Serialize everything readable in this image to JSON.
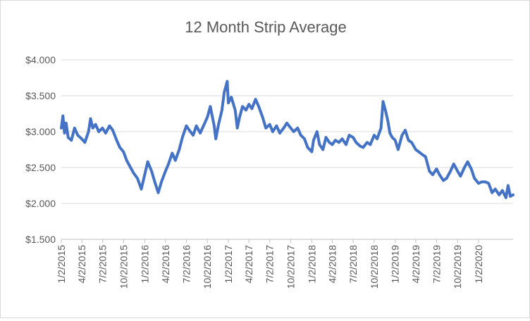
{
  "chart_data": {
    "type": "line",
    "title": "12 Month Strip Average",
    "xlabel": "",
    "ylabel": "",
    "ylim": [
      1.5,
      4.0
    ],
    "y_ticks": [
      {
        "value": 1.5,
        "label": "$1.500"
      },
      {
        "value": 2.0,
        "label": "$2.000"
      },
      {
        "value": 2.5,
        "label": "$2.500"
      },
      {
        "value": 3.0,
        "label": "$3.000"
      },
      {
        "value": 3.5,
        "label": "$3.500"
      },
      {
        "value": 4.0,
        "label": "$4.000"
      }
    ],
    "x_range": [
      "1/2/2015",
      "6/1/2020"
    ],
    "x_ticks": [
      "1/2/2015",
      "4/2/2015",
      "7/2/2015",
      "10/2/2015",
      "1/2/2016",
      "4/2/2016",
      "7/2/2016",
      "10/2/2016",
      "1/2/2017",
      "4/2/2017",
      "7/2/2017",
      "10/2/2017",
      "1/2/2018",
      "4/2/2018",
      "7/2/2018",
      "10/2/2018",
      "1/2/2019",
      "4/2/2019",
      "7/2/2019",
      "10/2/2019",
      "1/2/2020"
    ],
    "grid": "horizontal",
    "legend": "none",
    "series": [
      {
        "color": "#4472c4",
        "points": [
          [
            "1/2/2015",
            3.05
          ],
          [
            "1/9/2015",
            3.22
          ],
          [
            "1/16/2015",
            2.98
          ],
          [
            "1/23/2015",
            3.12
          ],
          [
            "2/1/2015",
            2.92
          ],
          [
            "2/15/2015",
            2.88
          ],
          [
            "3/1/2015",
            3.05
          ],
          [
            "3/15/2015",
            2.95
          ],
          [
            "4/1/2015",
            2.9
          ],
          [
            "4/15/2015",
            2.85
          ],
          [
            "5/1/2015",
            3.0
          ],
          [
            "5/10/2015",
            3.18
          ],
          [
            "5/20/2015",
            3.05
          ],
          [
            "6/1/2015",
            3.1
          ],
          [
            "6/15/2015",
            3.0
          ],
          [
            "7/1/2015",
            3.05
          ],
          [
            "7/15/2015",
            2.98
          ],
          [
            "8/1/2015",
            3.08
          ],
          [
            "8/15/2015",
            3.02
          ],
          [
            "9/1/2015",
            2.88
          ],
          [
            "9/15/2015",
            2.78
          ],
          [
            "10/1/2015",
            2.72
          ],
          [
            "10/15/2015",
            2.6
          ],
          [
            "11/1/2015",
            2.5
          ],
          [
            "11/15/2015",
            2.42
          ],
          [
            "12/1/2015",
            2.35
          ],
          [
            "12/18/2015",
            2.2
          ],
          [
            "1/2/2016",
            2.4
          ],
          [
            "1/15/2016",
            2.58
          ],
          [
            "2/1/2016",
            2.45
          ],
          [
            "2/15/2016",
            2.3
          ],
          [
            "3/1/2016",
            2.15
          ],
          [
            "3/15/2016",
            2.3
          ],
          [
            "4/2/2016",
            2.45
          ],
          [
            "4/15/2016",
            2.55
          ],
          [
            "5/1/2016",
            2.7
          ],
          [
            "5/15/2016",
            2.6
          ],
          [
            "6/1/2016",
            2.75
          ],
          [
            "6/15/2016",
            2.92
          ],
          [
            "7/2/2016",
            3.08
          ],
          [
            "7/15/2016",
            3.02
          ],
          [
            "8/1/2016",
            2.95
          ],
          [
            "8/15/2016",
            3.08
          ],
          [
            "9/1/2016",
            2.98
          ],
          [
            "9/15/2016",
            3.08
          ],
          [
            "10/2/2016",
            3.2
          ],
          [
            "10/15/2016",
            3.35
          ],
          [
            "11/1/2016",
            3.08
          ],
          [
            "11/8/2016",
            2.9
          ],
          [
            "11/20/2016",
            3.1
          ],
          [
            "12/5/2016",
            3.3
          ],
          [
            "12/15/2016",
            3.55
          ],
          [
            "12/28/2016",
            3.7
          ],
          [
            "1/2/2017",
            3.4
          ],
          [
            "1/15/2017",
            3.48
          ],
          [
            "2/1/2017",
            3.3
          ],
          [
            "2/10/2017",
            3.05
          ],
          [
            "2/20/2017",
            3.2
          ],
          [
            "3/5/2017",
            3.35
          ],
          [
            "3/20/2017",
            3.3
          ],
          [
            "4/2/2017",
            3.38
          ],
          [
            "4/15/2017",
            3.32
          ],
          [
            "5/1/2017",
            3.45
          ],
          [
            "5/15/2017",
            3.35
          ],
          [
            "6/1/2017",
            3.2
          ],
          [
            "6/15/2017",
            3.05
          ],
          [
            "7/2/2017",
            3.1
          ],
          [
            "7/15/2017",
            3.0
          ],
          [
            "8/1/2017",
            3.08
          ],
          [
            "8/15/2017",
            2.98
          ],
          [
            "9/1/2017",
            3.05
          ],
          [
            "9/15/2017",
            3.12
          ],
          [
            "10/2/2017",
            3.05
          ],
          [
            "10/15/2017",
            3.0
          ],
          [
            "11/1/2017",
            3.05
          ],
          [
            "11/15/2017",
            2.95
          ],
          [
            "12/1/2017",
            2.9
          ],
          [
            "12/15/2017",
            2.78
          ],
          [
            "1/2/2018",
            2.72
          ],
          [
            "1/10/2018",
            2.88
          ],
          [
            "1/25/2018",
            3.0
          ],
          [
            "2/5/2018",
            2.82
          ],
          [
            "2/20/2018",
            2.75
          ],
          [
            "3/5/2018",
            2.92
          ],
          [
            "3/20/2018",
            2.85
          ],
          [
            "4/2/2018",
            2.82
          ],
          [
            "4/15/2018",
            2.88
          ],
          [
            "5/1/2018",
            2.85
          ],
          [
            "5/15/2018",
            2.9
          ],
          [
            "6/1/2018",
            2.82
          ],
          [
            "6/15/2018",
            2.95
          ],
          [
            "7/2/2018",
            2.92
          ],
          [
            "7/15/2018",
            2.85
          ],
          [
            "8/1/2018",
            2.8
          ],
          [
            "8/15/2018",
            2.78
          ],
          [
            "9/1/2018",
            2.85
          ],
          [
            "9/15/2018",
            2.82
          ],
          [
            "10/2/2018",
            2.95
          ],
          [
            "10/15/2018",
            2.9
          ],
          [
            "11/1/2018",
            3.05
          ],
          [
            "11/10/2018",
            3.42
          ],
          [
            "11/20/2018",
            3.3
          ],
          [
            "12/1/2018",
            3.15
          ],
          [
            "12/10/2018",
            2.98
          ],
          [
            "12/20/2018",
            2.92
          ],
          [
            "1/2/2019",
            2.88
          ],
          [
            "1/15/2019",
            2.75
          ],
          [
            "2/1/2019",
            2.95
          ],
          [
            "2/15/2019",
            3.02
          ],
          [
            "3/1/2019",
            2.88
          ],
          [
            "3/15/2019",
            2.85
          ],
          [
            "4/2/2019",
            2.75
          ],
          [
            "4/15/2019",
            2.72
          ],
          [
            "5/1/2019",
            2.68
          ],
          [
            "5/15/2019",
            2.65
          ],
          [
            "6/1/2019",
            2.45
          ],
          [
            "6/15/2019",
            2.4
          ],
          [
            "7/2/2019",
            2.48
          ],
          [
            "7/15/2019",
            2.4
          ],
          [
            "8/1/2019",
            2.32
          ],
          [
            "8/15/2019",
            2.35
          ],
          [
            "9/1/2019",
            2.45
          ],
          [
            "9/15/2019",
            2.55
          ],
          [
            "10/2/2019",
            2.45
          ],
          [
            "10/15/2019",
            2.38
          ],
          [
            "11/1/2019",
            2.5
          ],
          [
            "11/15/2019",
            2.58
          ],
          [
            "12/1/2019",
            2.48
          ],
          [
            "12/15/2019",
            2.35
          ],
          [
            "1/2/2020",
            2.28
          ],
          [
            "1/15/2020",
            2.3
          ],
          [
            "2/1/2020",
            2.3
          ],
          [
            "2/15/2020",
            2.28
          ],
          [
            "3/1/2020",
            2.15
          ],
          [
            "3/15/2020",
            2.2
          ],
          [
            "4/1/2020",
            2.12
          ],
          [
            "4/15/2020",
            2.18
          ],
          [
            "5/1/2020",
            2.08
          ],
          [
            "5/10/2020",
            2.25
          ],
          [
            "5/20/2020",
            2.1
          ],
          [
            "6/1/2020",
            2.12
          ]
        ]
      }
    ]
  }
}
